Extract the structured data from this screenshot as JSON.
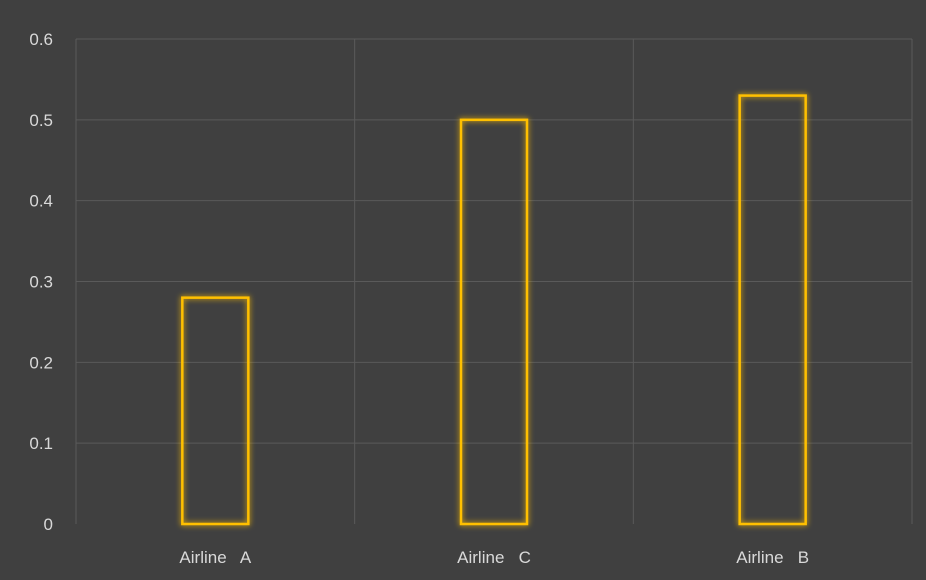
{
  "chart_data": {
    "type": "bar",
    "categories": [
      "Airline   A",
      "Airline   C",
      "Airline   B"
    ],
    "values": [
      0.28,
      0.5,
      0.53
    ],
    "title": "",
    "xlabel": "",
    "ylabel": "",
    "ylim": [
      0,
      0.6
    ],
    "yticks": [
      "0",
      "0.1",
      "0.2",
      "0.3",
      "0.4",
      "0.5",
      "0.6"
    ],
    "grid": true,
    "legend": "none"
  },
  "colors": {
    "background": "#404040",
    "gridline": "#5a5a5a",
    "bar_outline": "#ffc000",
    "bar_glow": "#ffc000",
    "text": "#d9d9d9"
  }
}
